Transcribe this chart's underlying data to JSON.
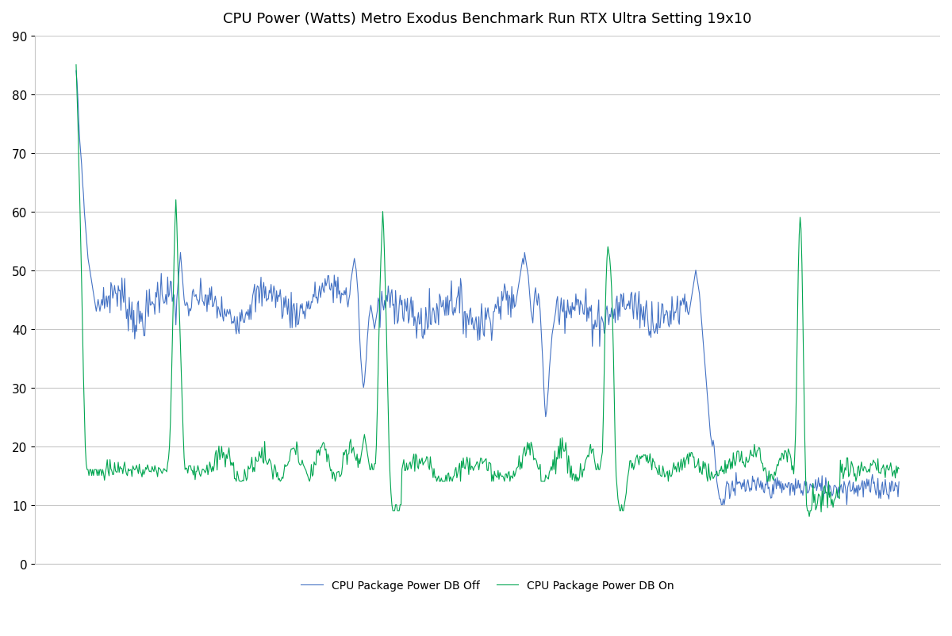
{
  "title": "CPU Power (Watts) Metro Exodus Benchmark Run RTX Ultra Setting 19x10",
  "title_fontsize": 13,
  "ylim": [
    0,
    90
  ],
  "yticks": [
    0,
    10,
    20,
    30,
    40,
    50,
    60,
    70,
    80,
    90
  ],
  "color_db_off": "#4472C4",
  "color_db_on": "#00A550",
  "legend_db_off": "CPU Package Power DB Off",
  "legend_db_on": "CPU Package Power DB On",
  "line_width": 0.8,
  "grid_color": "#C8C8C8",
  "background_color": "#FFFFFF",
  "legend_fontsize": 10,
  "tick_fontsize": 11
}
